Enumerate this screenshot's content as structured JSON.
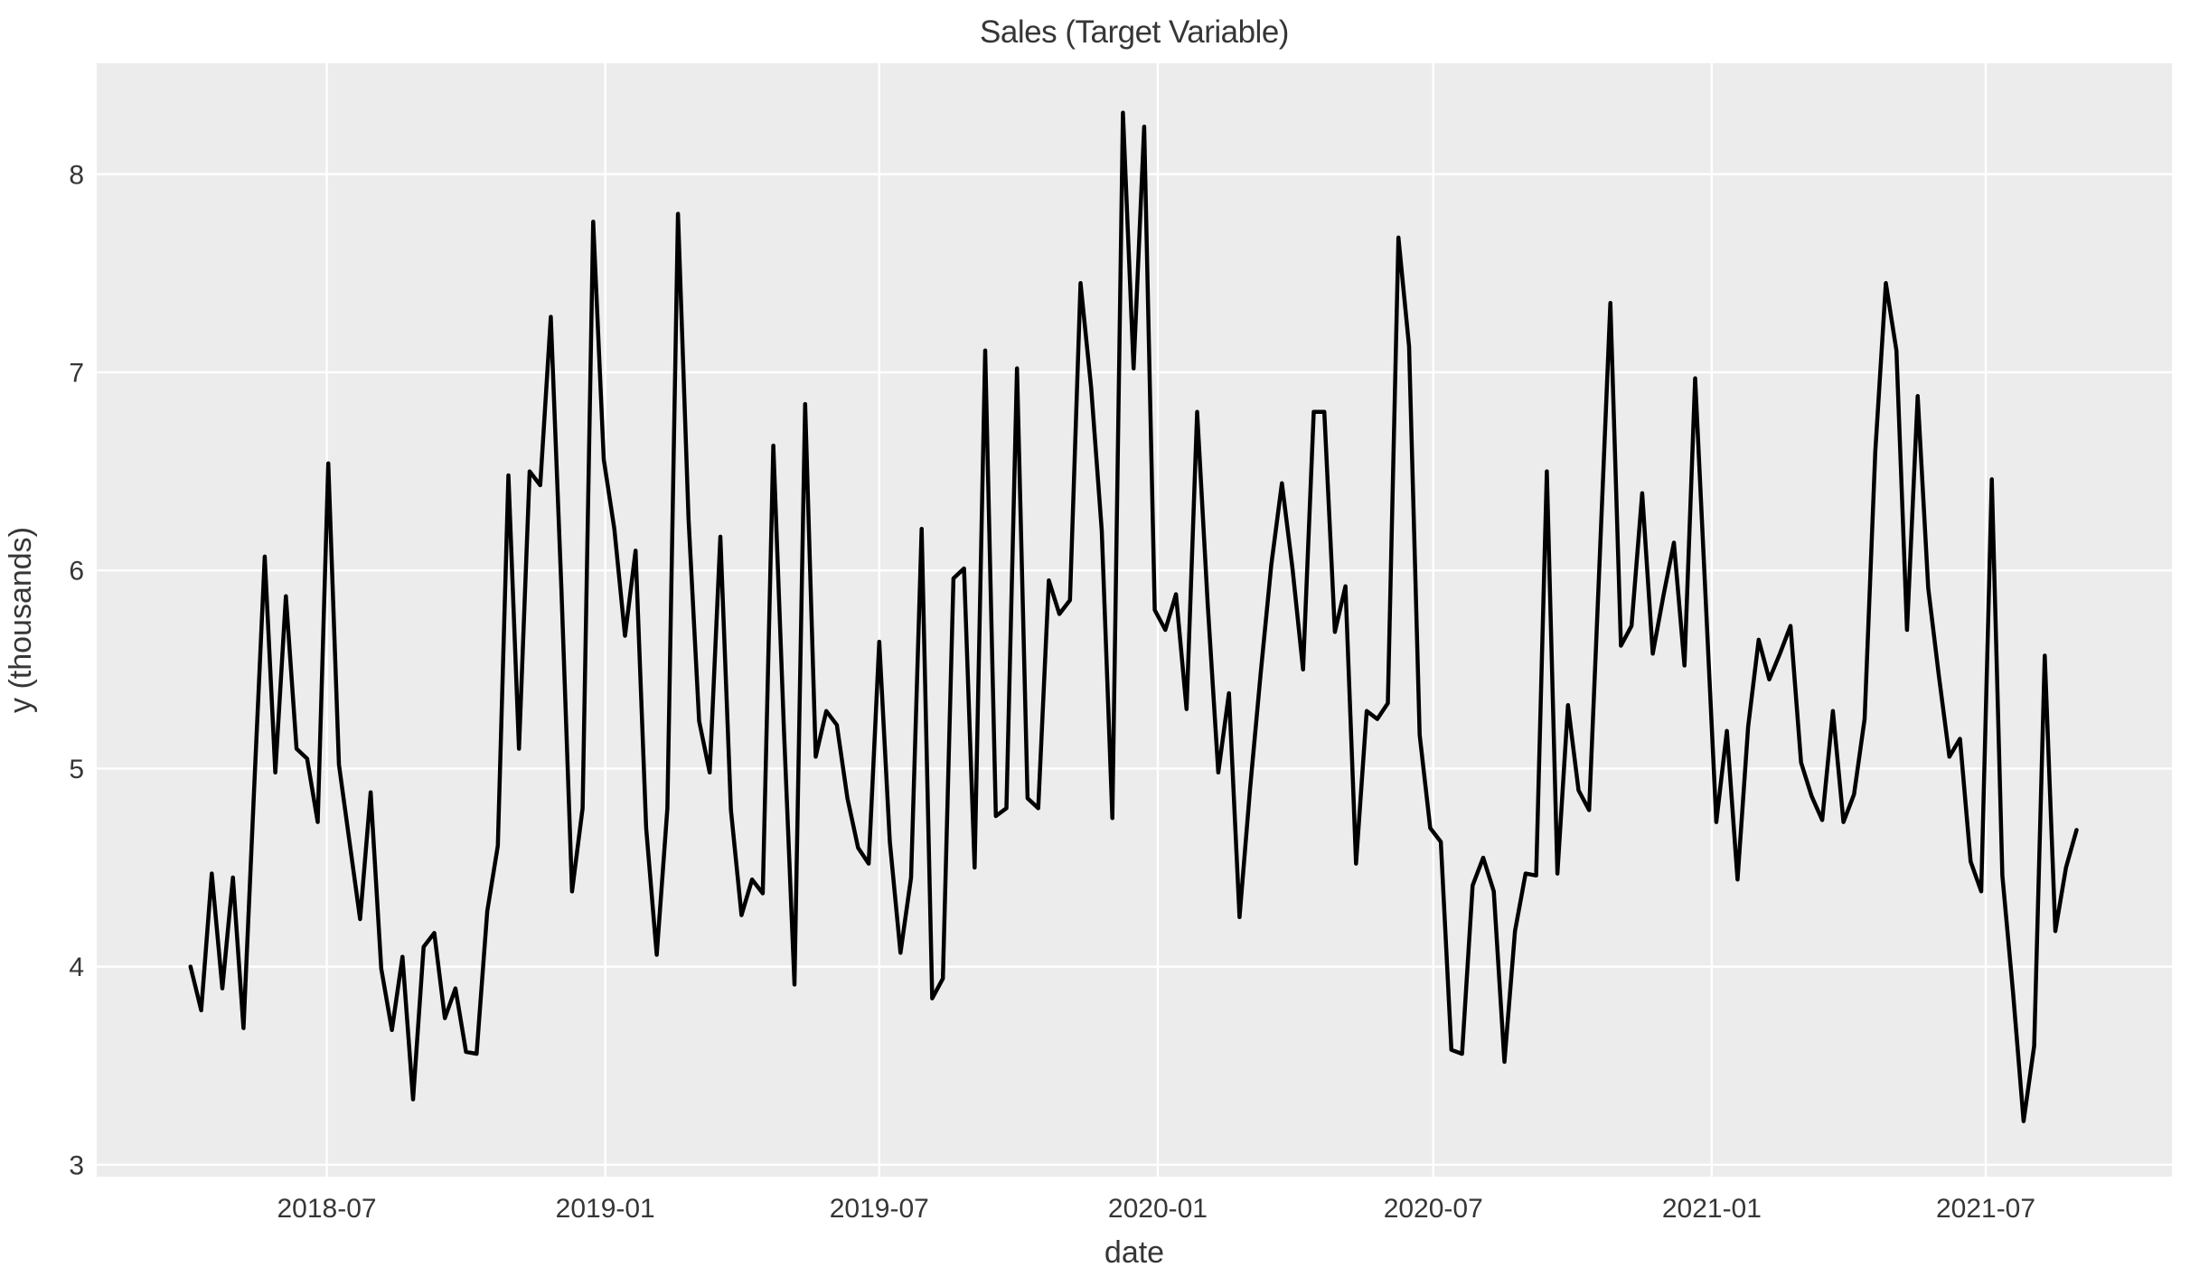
{
  "figure": {
    "title": "Sales (Target Variable)"
  },
  "chart_data": {
    "type": "line",
    "title": "Sales (Target Variable)",
    "xlabel": "date",
    "ylabel": "y (thousands)",
    "grid": true,
    "legend": false,
    "plot_bg_color": "#ececec",
    "grid_color": "#ffffff",
    "line_color": "#000000",
    "text_color": "#363636",
    "ylim": [
      2.94,
      8.56
    ],
    "xlim_dates": [
      "2018-01-30",
      "2021-11-01"
    ],
    "y_ticks": [
      3,
      4,
      5,
      6,
      7,
      8
    ],
    "x_ticks": [
      {
        "label": "2018-07",
        "date": "2018-07-01"
      },
      {
        "label": "2019-01",
        "date": "2019-01-01"
      },
      {
        "label": "2019-07",
        "date": "2019-07-01"
      },
      {
        "label": "2020-01",
        "date": "2020-01-01"
      },
      {
        "label": "2020-07",
        "date": "2020-07-01"
      },
      {
        "label": "2021-01",
        "date": "2021-01-01"
      },
      {
        "label": "2021-07",
        "date": "2021-07-01"
      }
    ],
    "series": [
      {
        "name": "y",
        "start_date": "2018-04-02",
        "freq_days": 7,
        "values": [
          4.0,
          3.78,
          4.47,
          3.89,
          4.45,
          3.69,
          4.9,
          6.07,
          4.98,
          5.87,
          5.1,
          5.05,
          4.73,
          6.54,
          5.02,
          4.63,
          4.24,
          4.88,
          3.99,
          3.68,
          4.05,
          3.33,
          4.1,
          4.17,
          3.74,
          3.89,
          3.57,
          3.56,
          4.28,
          4.61,
          6.48,
          5.1,
          6.5,
          6.43,
          7.28,
          5.91,
          4.38,
          4.8,
          7.76,
          6.56,
          6.21,
          5.67,
          6.1,
          4.7,
          4.06,
          4.8,
          7.8,
          6.26,
          5.24,
          4.98,
          6.17,
          4.79,
          4.26,
          4.44,
          4.37,
          6.63,
          5.2,
          3.91,
          6.84,
          5.06,
          5.29,
          5.22,
          4.85,
          4.6,
          4.52,
          5.64,
          4.63,
          4.07,
          4.45,
          6.21,
          3.84,
          3.94,
          5.96,
          6.01,
          4.5,
          7.11,
          4.76,
          4.8,
          7.02,
          4.85,
          4.8,
          5.95,
          5.78,
          5.85,
          7.45,
          6.92,
          6.2,
          4.75,
          8.31,
          7.02,
          8.24,
          5.8,
          5.7,
          5.88,
          5.3,
          6.8,
          5.83,
          4.98,
          5.38,
          4.25,
          4.9,
          5.48,
          6.03,
          6.44,
          6.01,
          5.5,
          6.8,
          6.8,
          5.69,
          5.92,
          4.52,
          5.29,
          5.25,
          5.33,
          7.68,
          7.13,
          5.17,
          4.7,
          4.63,
          3.58,
          3.56,
          4.41,
          4.55,
          4.38,
          3.52,
          4.18,
          4.47,
          4.46,
          6.5,
          4.47,
          5.32,
          4.89,
          4.79,
          6.07,
          7.35,
          5.62,
          5.72,
          6.39,
          5.58,
          5.87,
          6.14,
          5.52,
          6.97,
          5.85,
          4.73,
          5.19,
          4.44,
          5.21,
          5.65,
          5.45,
          5.58,
          5.72,
          5.03,
          4.86,
          4.74,
          5.29,
          4.73,
          4.87,
          5.25,
          6.6,
          7.45,
          7.11,
          5.7,
          6.88,
          5.91,
          5.47,
          5.06,
          5.15,
          4.53,
          4.38,
          6.46,
          4.46,
          3.87,
          3.22,
          3.6,
          5.57,
          4.18,
          4.5,
          4.69
        ]
      }
    ]
  }
}
